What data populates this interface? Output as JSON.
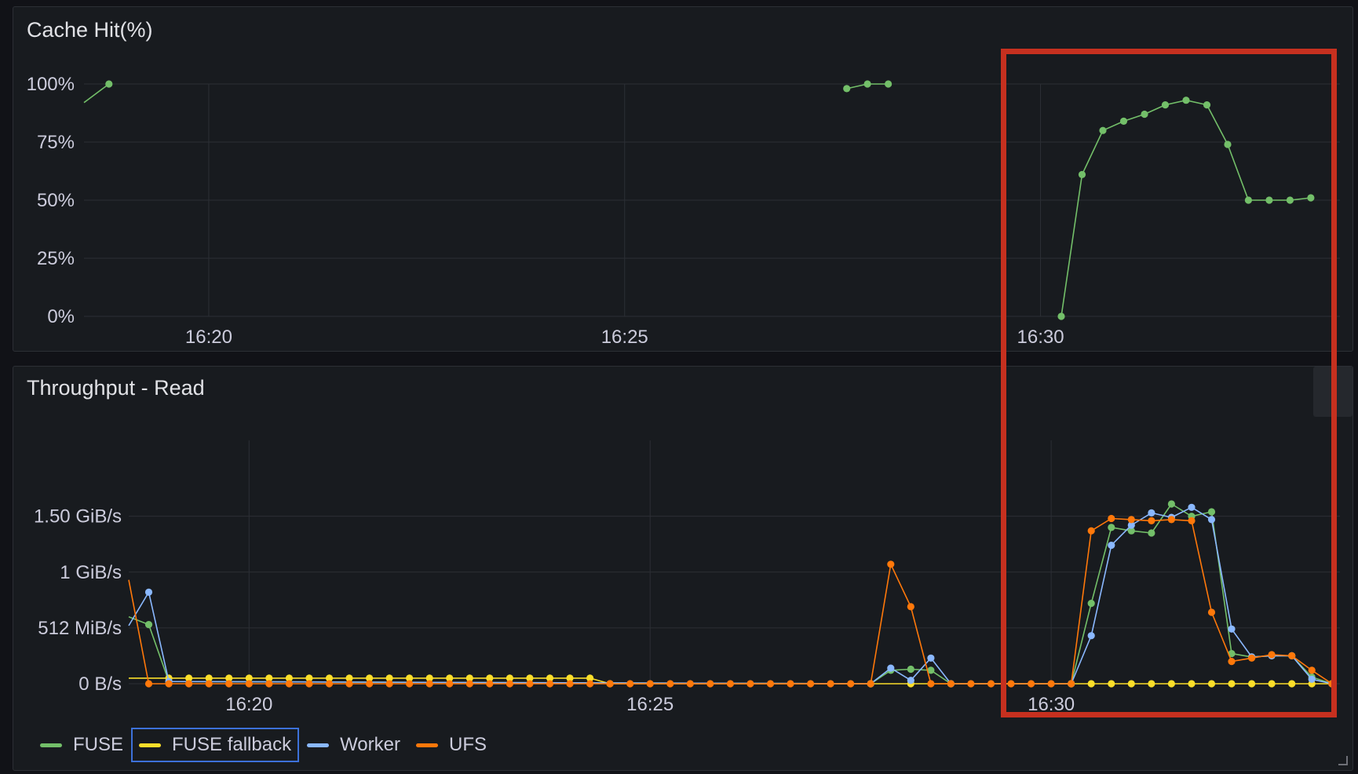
{
  "colors": {
    "FUSE": "#73bf69",
    "FUSE fallback": "#fade2a",
    "Worker": "#8ab8ff",
    "UFS": "#ff780a",
    "grid": "#2c2f35",
    "highlight": "#c6301f"
  },
  "panels": {
    "cache": {
      "title": "Cache Hit(%)"
    },
    "throughput": {
      "title": "Throughput - Read",
      "menu_icon": "kebab-menu-icon"
    }
  },
  "chart_data": [
    {
      "type": "line",
      "title": "Cache Hit(%)",
      "xlabel": "",
      "ylabel": "",
      "x_unit": "minutes past 16:00",
      "xlim": [
        18.5,
        33.6
      ],
      "ylim": [
        0,
        100
      ],
      "x_ticks": [
        {
          "value": 20,
          "label": "16:20"
        },
        {
          "value": 25,
          "label": "16:25"
        },
        {
          "value": 30,
          "label": "16:30"
        }
      ],
      "y_ticks": [
        {
          "value": 100,
          "label": "100%"
        },
        {
          "value": 75,
          "label": "75%"
        },
        {
          "value": 50,
          "label": "50%"
        },
        {
          "value": 25,
          "label": "25%"
        },
        {
          "value": 0,
          "label": "0%"
        }
      ],
      "grid": true,
      "series": [
        {
          "name": "FUSE",
          "segments": [
            [
              [
                18.5,
                92
              ],
              [
                18.8,
                100
              ]
            ],
            [
              [
                27.67,
                98
              ],
              [
                27.92,
                100
              ],
              [
                28.17,
                100
              ]
            ],
            [
              [
                30.25,
                0
              ],
              [
                30.5,
                61
              ],
              [
                30.75,
                80
              ],
              [
                31.0,
                84
              ],
              [
                31.25,
                87
              ],
              [
                31.5,
                91
              ],
              [
                31.75,
                93
              ],
              [
                32.0,
                91
              ],
              [
                32.25,
                74
              ],
              [
                32.5,
                50
              ],
              [
                32.75,
                50
              ],
              [
                33.0,
                50
              ],
              [
                33.25,
                51
              ]
            ]
          ]
        }
      ]
    },
    {
      "type": "line",
      "title": "Throughput - Read",
      "xlabel": "",
      "ylabel": "",
      "x_unit": "minutes past 16:00",
      "y_unit": "GiB/s",
      "xlim": [
        18.5,
        33.6
      ],
      "ylim": [
        0,
        1.8
      ],
      "x_ticks": [
        {
          "value": 20,
          "label": "16:20"
        },
        {
          "value": 25,
          "label": "16:25"
        },
        {
          "value": 30,
          "label": "16:30"
        }
      ],
      "y_ticks": [
        {
          "value": 1.5,
          "label": "1.50 GiB/s"
        },
        {
          "value": 1.0,
          "label": "1 GiB/s"
        },
        {
          "value": 0.5,
          "label": "512 MiB/s"
        },
        {
          "value": 0,
          "label": "0 B/s"
        }
      ],
      "grid": true,
      "legend": "bottom-left",
      "series": [
        {
          "name": "FUSE",
          "points": [
            [
              18.5,
              0.6
            ],
            [
              18.75,
              0.53
            ],
            [
              19.0,
              0.02
            ],
            [
              27.75,
              0.0
            ],
            [
              28.0,
              0.12
            ],
            [
              28.25,
              0.13
            ],
            [
              28.5,
              0.12
            ],
            [
              28.75,
              0.0
            ],
            [
              30.25,
              0.0
            ],
            [
              30.5,
              0.72
            ],
            [
              30.75,
              1.4
            ],
            [
              31.0,
              1.37
            ],
            [
              31.25,
              1.35
            ],
            [
              31.5,
              1.61
            ],
            [
              31.75,
              1.5
            ],
            [
              32.0,
              1.54
            ],
            [
              32.25,
              0.27
            ],
            [
              32.5,
              0.24
            ],
            [
              32.75,
              0.25
            ],
            [
              33.0,
              0.25
            ],
            [
              33.25,
              0.06
            ],
            [
              33.5,
              0.0
            ]
          ]
        },
        {
          "name": "FUSE fallback",
          "points": [
            [
              18.5,
              0.05
            ],
            [
              19.0,
              0.05
            ],
            [
              19.25,
              0.05
            ],
            [
              19.5,
              0.05
            ],
            [
              19.75,
              0.05
            ],
            [
              20.0,
              0.05
            ],
            [
              20.25,
              0.05
            ],
            [
              20.5,
              0.05
            ],
            [
              20.75,
              0.05
            ],
            [
              21.0,
              0.05
            ],
            [
              21.25,
              0.05
            ],
            [
              21.5,
              0.05
            ],
            [
              21.75,
              0.05
            ],
            [
              22.0,
              0.05
            ],
            [
              22.25,
              0.05
            ],
            [
              22.5,
              0.05
            ],
            [
              22.75,
              0.05
            ],
            [
              23.0,
              0.05
            ],
            [
              23.25,
              0.05
            ],
            [
              23.5,
              0.05
            ],
            [
              23.75,
              0.05
            ],
            [
              24.0,
              0.05
            ],
            [
              24.25,
              0.05
            ],
            [
              24.5,
              0.0
            ],
            [
              27.75,
              0.0
            ],
            [
              28.25,
              0.0
            ],
            [
              30.25,
              0.0
            ],
            [
              30.5,
              0.0
            ],
            [
              30.75,
              0.0
            ],
            [
              31.0,
              0.0
            ],
            [
              31.25,
              0.0
            ],
            [
              31.5,
              0.0
            ],
            [
              31.75,
              0.0
            ],
            [
              32.0,
              0.0
            ],
            [
              32.25,
              0.0
            ],
            [
              32.5,
              0.0
            ],
            [
              32.75,
              0.0
            ],
            [
              33.0,
              0.0
            ],
            [
              33.25,
              0.0
            ],
            [
              33.5,
              0.0
            ]
          ]
        },
        {
          "name": "Worker",
          "points": [
            [
              18.5,
              0.52
            ],
            [
              18.75,
              0.82
            ],
            [
              19.0,
              0.02
            ],
            [
              27.75,
              0.0
            ],
            [
              28.0,
              0.14
            ],
            [
              28.25,
              0.03
            ],
            [
              28.5,
              0.23
            ],
            [
              28.75,
              0.0
            ],
            [
              30.25,
              0.0
            ],
            [
              30.5,
              0.43
            ],
            [
              30.75,
              1.24
            ],
            [
              31.0,
              1.42
            ],
            [
              31.25,
              1.53
            ],
            [
              31.5,
              1.49
            ],
            [
              31.75,
              1.58
            ],
            [
              32.0,
              1.47
            ],
            [
              32.25,
              0.49
            ],
            [
              32.5,
              0.24
            ],
            [
              32.75,
              0.25
            ],
            [
              33.0,
              0.25
            ],
            [
              33.25,
              0.04
            ],
            [
              33.5,
              0.0
            ]
          ]
        },
        {
          "name": "UFS",
          "points": [
            [
              18.5,
              0.93
            ],
            [
              18.75,
              0.0
            ],
            [
              19.0,
              0.0
            ],
            [
              19.25,
              0.0
            ],
            [
              19.5,
              0.0
            ],
            [
              19.75,
              0.0
            ],
            [
              20.0,
              0.0
            ],
            [
              20.25,
              0.0
            ],
            [
              20.5,
              0.0
            ],
            [
              20.75,
              0.0
            ],
            [
              21.0,
              0.0
            ],
            [
              21.25,
              0.0
            ],
            [
              21.5,
              0.0
            ],
            [
              21.75,
              0.0
            ],
            [
              22.0,
              0.0
            ],
            [
              22.25,
              0.0
            ],
            [
              22.5,
              0.0
            ],
            [
              22.75,
              0.0
            ],
            [
              23.0,
              0.0
            ],
            [
              23.25,
              0.0
            ],
            [
              23.5,
              0.0
            ],
            [
              23.75,
              0.0
            ],
            [
              24.0,
              0.0
            ],
            [
              24.25,
              0.0
            ],
            [
              24.5,
              0.0
            ],
            [
              24.75,
              0.0
            ],
            [
              25.0,
              0.0
            ],
            [
              25.25,
              0.0
            ],
            [
              25.5,
              0.0
            ],
            [
              25.75,
              0.0
            ],
            [
              26.0,
              0.0
            ],
            [
              26.25,
              0.0
            ],
            [
              26.5,
              0.0
            ],
            [
              26.75,
              0.0
            ],
            [
              27.0,
              0.0
            ],
            [
              27.25,
              0.0
            ],
            [
              27.5,
              0.0
            ],
            [
              27.75,
              0.0
            ],
            [
              28.0,
              1.07
            ],
            [
              28.25,
              0.69
            ],
            [
              28.5,
              0.0
            ],
            [
              28.75,
              0.0
            ],
            [
              29.0,
              0.0
            ],
            [
              29.25,
              0.0
            ],
            [
              29.5,
              0.0
            ],
            [
              29.75,
              0.0
            ],
            [
              30.0,
              0.0
            ],
            [
              30.25,
              0.0
            ],
            [
              30.5,
              1.37
            ],
            [
              30.75,
              1.48
            ],
            [
              31.0,
              1.47
            ],
            [
              31.25,
              1.46
            ],
            [
              31.5,
              1.47
            ],
            [
              31.75,
              1.46
            ],
            [
              32.0,
              0.64
            ],
            [
              32.25,
              0.2
            ],
            [
              32.5,
              0.23
            ],
            [
              32.75,
              0.26
            ],
            [
              33.0,
              0.25
            ],
            [
              33.25,
              0.12
            ],
            [
              33.5,
              0.0
            ]
          ]
        }
      ]
    }
  ]
}
